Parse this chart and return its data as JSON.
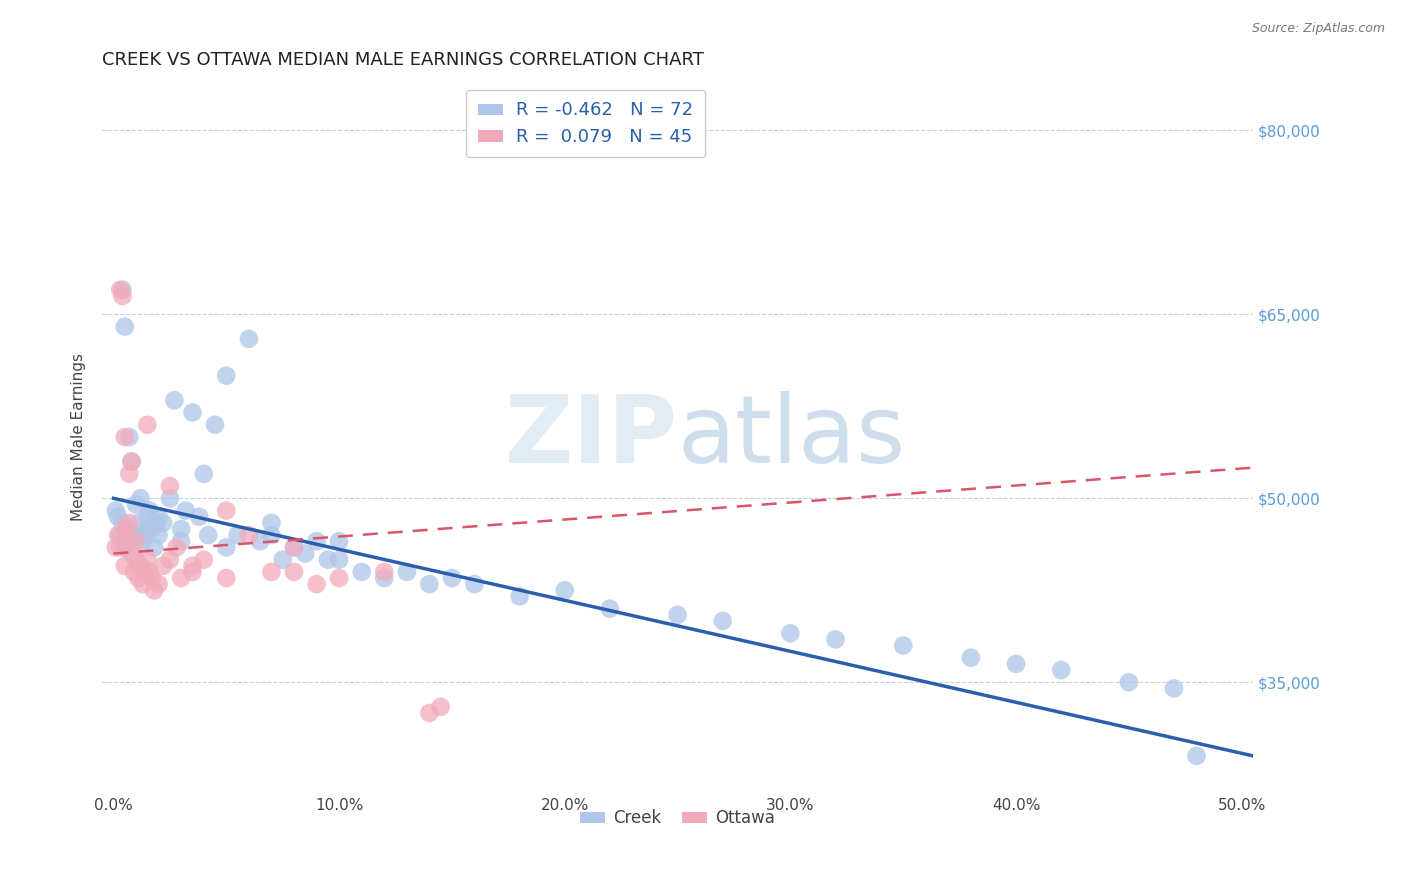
{
  "title": "CREEK VS OTTAWA MEDIAN MALE EARNINGS CORRELATION CHART",
  "source_text": "Source: ZipAtlas.com",
  "ylabel": "Median Male Earnings",
  "xlim": [
    -0.005,
    0.505
  ],
  "ylim": [
    26000,
    84000
  ],
  "xtick_labels": [
    "0.0%",
    "10.0%",
    "20.0%",
    "30.0%",
    "40.0%",
    "50.0%"
  ],
  "xtick_vals": [
    0.0,
    0.1,
    0.2,
    0.3,
    0.4,
    0.5
  ],
  "ytick_labels": [
    "$35,000",
    "$50,000",
    "$65,000",
    "$80,000"
  ],
  "ytick_vals": [
    35000,
    50000,
    65000,
    80000
  ],
  "creek_R": -0.462,
  "creek_N": 72,
  "ottawa_R": 0.079,
  "ottawa_N": 45,
  "creek_color": "#aec6e8",
  "ottawa_color": "#f2aabb",
  "creek_line_color": "#2b5fad",
  "ottawa_line_color": "#d9566a",
  "right_tick_color": "#5b9bd5",
  "legend_text_color": "#2b5fad",
  "watermark_color": "#ccdaeb",
  "title_fontsize": 13,
  "axis_label_fontsize": 11,
  "tick_fontsize": 11,
  "creek_line_x0": 0.0,
  "creek_line_y0": 50000,
  "creek_line_x1": 0.505,
  "creek_line_y1": 29000,
  "ottawa_line_x0": 0.0,
  "ottawa_line_y0": 45500,
  "ottawa_line_x1": 0.505,
  "ottawa_line_y1": 52500,
  "creek_x": [
    0.001,
    0.002,
    0.003,
    0.004,
    0.004,
    0.005,
    0.005,
    0.006,
    0.007,
    0.008,
    0.009,
    0.01,
    0.011,
    0.012,
    0.013,
    0.014,
    0.015,
    0.016,
    0.017,
    0.018,
    0.019,
    0.02,
    0.022,
    0.025,
    0.027,
    0.03,
    0.032,
    0.035,
    0.038,
    0.04,
    0.042,
    0.045,
    0.05,
    0.055,
    0.06,
    0.065,
    0.07,
    0.075,
    0.08,
    0.085,
    0.09,
    0.095,
    0.1,
    0.11,
    0.12,
    0.13,
    0.14,
    0.15,
    0.16,
    0.18,
    0.2,
    0.22,
    0.25,
    0.27,
    0.3,
    0.32,
    0.35,
    0.38,
    0.4,
    0.42,
    0.45,
    0.47,
    0.48,
    0.005,
    0.008,
    0.012,
    0.015,
    0.02,
    0.03,
    0.05,
    0.07,
    0.1
  ],
  "creek_y": [
    49000,
    48500,
    47000,
    48000,
    67000,
    46500,
    64000,
    47500,
    55000,
    53000,
    47000,
    49500,
    48000,
    50000,
    46500,
    47000,
    48500,
    49000,
    47500,
    46000,
    48000,
    47000,
    48000,
    50000,
    58000,
    47500,
    49000,
    57000,
    48500,
    52000,
    47000,
    56000,
    60000,
    47000,
    63000,
    46500,
    47000,
    45000,
    46000,
    45500,
    46500,
    45000,
    45000,
    44000,
    43500,
    44000,
    43000,
    43500,
    43000,
    42000,
    42500,
    41000,
    40500,
    40000,
    39000,
    38500,
    38000,
    37000,
    36500,
    36000,
    35000,
    34500,
    29000,
    46000,
    46500,
    47000,
    47500,
    48500,
    46500,
    46000,
    48000,
    46500
  ],
  "ottawa_x": [
    0.001,
    0.002,
    0.003,
    0.004,
    0.005,
    0.005,
    0.006,
    0.007,
    0.008,
    0.008,
    0.009,
    0.01,
    0.011,
    0.012,
    0.013,
    0.014,
    0.015,
    0.016,
    0.017,
    0.018,
    0.02,
    0.022,
    0.025,
    0.028,
    0.03,
    0.035,
    0.04,
    0.05,
    0.06,
    0.07,
    0.08,
    0.09,
    0.1,
    0.12,
    0.14,
    0.003,
    0.005,
    0.007,
    0.01,
    0.015,
    0.025,
    0.035,
    0.05,
    0.08,
    0.145
  ],
  "ottawa_y": [
    46000,
    47000,
    67000,
    66500,
    44500,
    55000,
    47000,
    52000,
    45500,
    53000,
    44000,
    45000,
    43500,
    44500,
    43000,
    44000,
    45000,
    44000,
    43500,
    42500,
    43000,
    44500,
    45000,
    46000,
    43500,
    44000,
    45000,
    49000,
    47000,
    44000,
    46000,
    43000,
    43500,
    44000,
    32500,
    46000,
    47500,
    48000,
    46500,
    56000,
    51000,
    44500,
    43500,
    44000,
    33000
  ]
}
